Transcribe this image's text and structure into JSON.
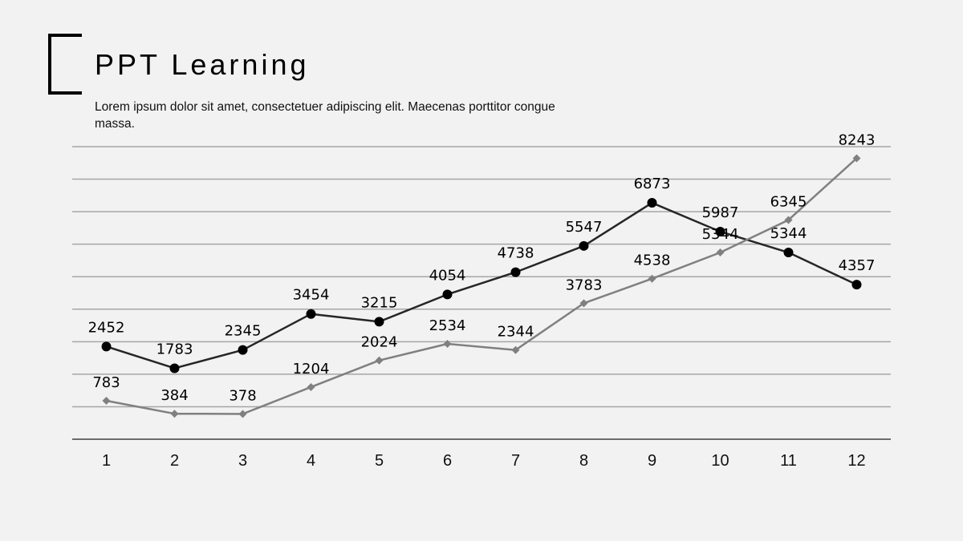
{
  "header": {
    "title": "PPT Learning",
    "subtitle": "Lorem ipsum dolor sit amet, consectetuer adipiscing elit. Maecenas porttitor congue massa."
  },
  "colors": {
    "series1": "#262626",
    "series2": "#808080",
    "grid": "#a6a6a6",
    "axis": "#404040"
  },
  "chart_data": {
    "type": "line",
    "x": [
      1,
      2,
      3,
      4,
      5,
      6,
      7,
      8,
      9,
      10,
      11,
      12
    ],
    "categories": [
      "1",
      "2",
      "3",
      "4",
      "5",
      "6",
      "7",
      "8",
      "9",
      "10",
      "11",
      "12"
    ],
    "series": [
      {
        "values": [
          2452,
          1783,
          2345,
          3454,
          3215,
          4054,
          4738,
          5547,
          6873,
          5987,
          5344,
          4357
        ],
        "marker": "circle"
      },
      {
        "values": [
          783,
          384,
          378,
          1204,
          2024,
          2534,
          2344,
          3783,
          4538,
          5344,
          6345,
          8243
        ],
        "marker": "diamond"
      }
    ],
    "ylim": [
      -400,
      8600
    ],
    "grid": true,
    "legend": "none",
    "xlabel": "",
    "ylabel": ""
  }
}
